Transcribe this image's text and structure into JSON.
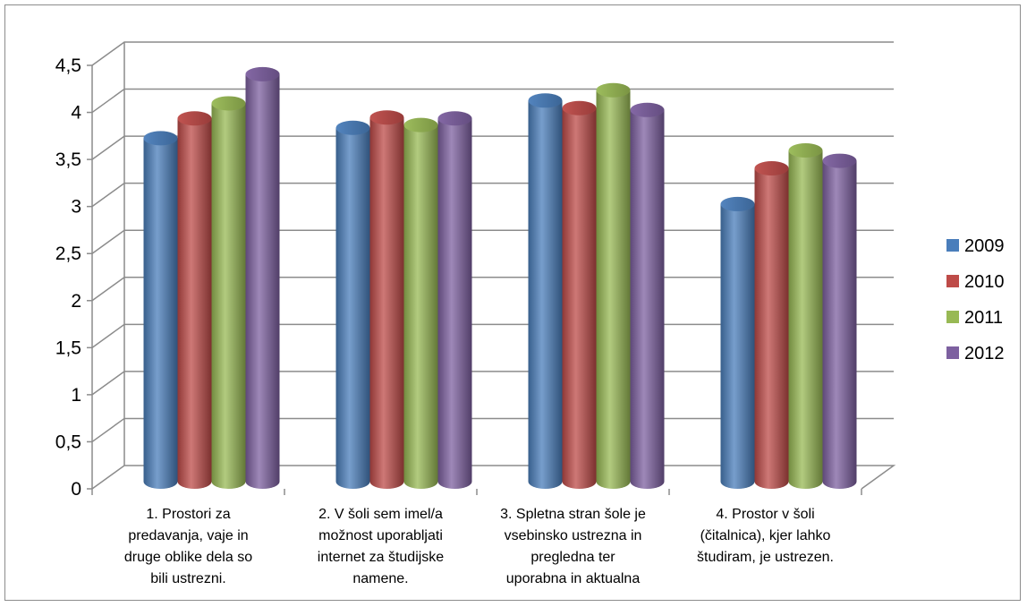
{
  "chart_data": {
    "type": "bar",
    "categories": [
      [
        "1. Prostori za",
        "predavanja, vaje in",
        "druge oblike dela so",
        "bili ustrezni."
      ],
      [
        "2. V šoli sem imel/a",
        "možnost uporabljati",
        "internet za študijske",
        "namene."
      ],
      [
        "3. Spletna stran šole je",
        "vsebinsko ustrezna in",
        "pregledna ter",
        "uporabna in aktualna"
      ],
      [
        "4. Prostor v šoli",
        "(čitalnica), kjer lahko",
        "študiram, je ustrezen."
      ]
    ],
    "series": [
      {
        "name": "2009",
        "values": [
          3.65,
          3.76,
          4.05,
          2.95
        ]
      },
      {
        "name": "2010",
        "values": [
          3.86,
          3.87,
          3.97,
          3.33
        ]
      },
      {
        "name": "2011",
        "values": [
          4.02,
          3.79,
          4.16,
          3.52
        ]
      },
      {
        "name": "2012",
        "values": [
          4.33,
          3.86,
          3.95,
          3.41
        ]
      }
    ],
    "yticks": [
      "0",
      "0,5",
      "1",
      "1,5",
      "2",
      "2,5",
      "3",
      "3,5",
      "4",
      "4,5"
    ],
    "ylim": [
      0,
      4.5
    ],
    "grid": true,
    "legend": "right",
    "colors": [
      "#4a7ebb",
      "#be4b48",
      "#98b954",
      "#7d60a0"
    ]
  }
}
